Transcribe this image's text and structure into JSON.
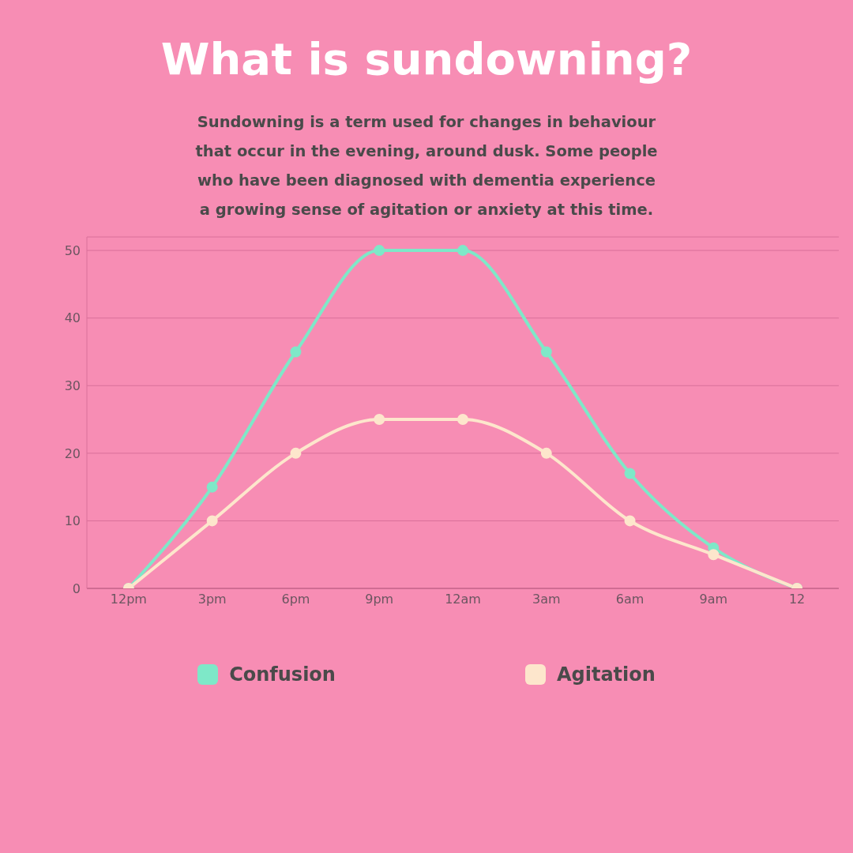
{
  "chart_data": {
    "type": "line",
    "title": "What is sundowning?",
    "subtitle": "Sundowning is a term used for changes in behaviour that occur in the evening, around dusk. Some people who have been diagnosed with dementia experience a growing sense of agitation or anxiety at this time.",
    "categories": [
      "12pm",
      "3pm",
      "6pm",
      "9pm",
      "12am",
      "3am",
      "6am",
      "9am",
      "12"
    ],
    "series": [
      {
        "name": "Confusion",
        "color": "#7ee8c8",
        "values": [
          0,
          15,
          35,
          50,
          50,
          35,
          17,
          6,
          0
        ]
      },
      {
        "name": "Agitation",
        "color": "#fde6cc",
        "values": [
          0,
          10,
          20,
          25,
          25,
          20,
          10,
          5,
          0
        ]
      }
    ],
    "ylim": [
      0,
      52
    ],
    "yticks": [
      0,
      10,
      20,
      30,
      40,
      50
    ],
    "grid": "y",
    "legend": "bottom",
    "marker": "circle",
    "line_style": "solid"
  }
}
